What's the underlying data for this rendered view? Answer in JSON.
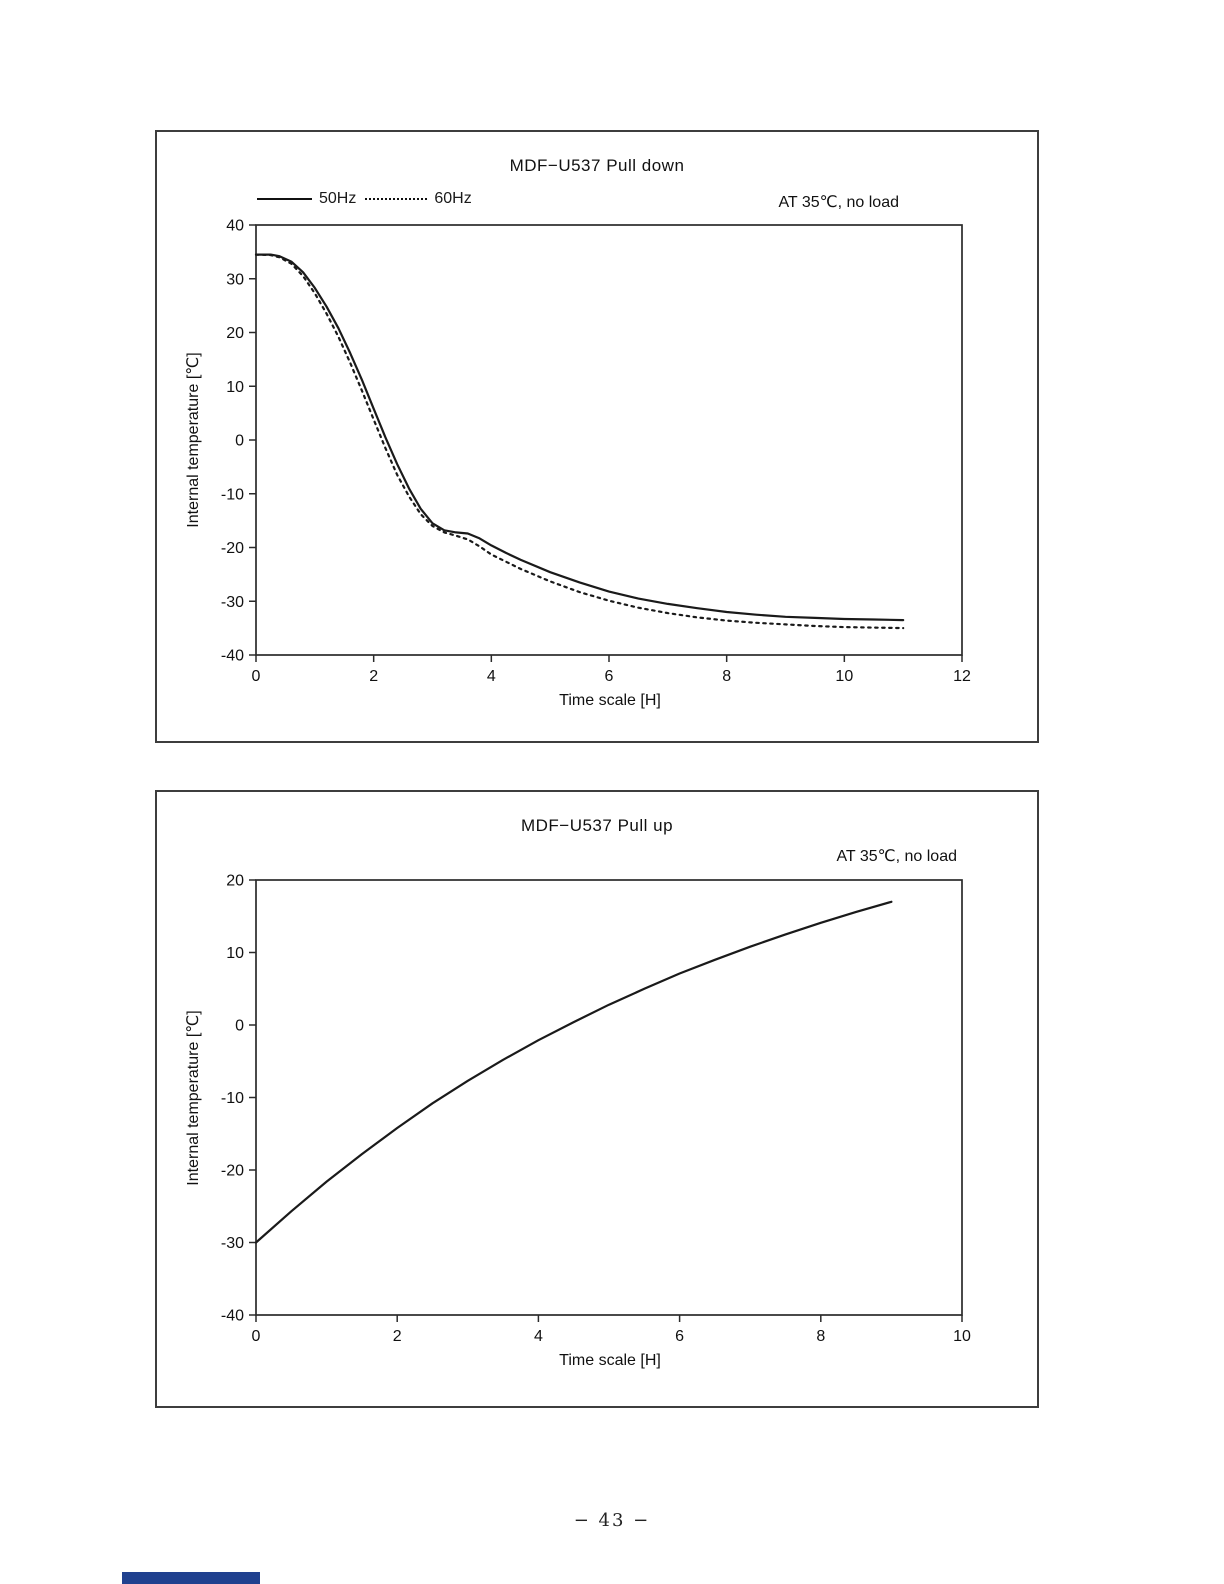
{
  "page": {
    "page_number": "− 43 −"
  },
  "chart_data": [
    {
      "type": "line",
      "title": "MDF−U537  Pull down",
      "annotation": "AT 35℃, no load",
      "xlabel": "Time scale [H]",
      "ylabel": "Internal temperature [℃]",
      "xlim": [
        0,
        12
      ],
      "ylim": [
        -40,
        40
      ],
      "xticks": [
        0,
        2,
        4,
        6,
        8,
        10,
        12
      ],
      "yticks": [
        40,
        30,
        20,
        10,
        0,
        -10,
        -20,
        -30,
        -40
      ],
      "grid": false,
      "legend_position": "top-left",
      "series": [
        {
          "name": "50Hz",
          "line_style": "solid",
          "color": "#1a1a1a",
          "points": [
            [
              0,
              34.5
            ],
            [
              0.25,
              34.5
            ],
            [
              0.4,
              34.2
            ],
            [
              0.6,
              33.2
            ],
            [
              0.8,
              31.2
            ],
            [
              1.0,
              28.3
            ],
            [
              1.2,
              24.8
            ],
            [
              1.4,
              20.8
            ],
            [
              1.6,
              16.2
            ],
            [
              1.8,
              11.2
            ],
            [
              2.0,
              5.8
            ],
            [
              2.2,
              0.5
            ],
            [
              2.4,
              -4.5
            ],
            [
              2.6,
              -9.0
            ],
            [
              2.8,
              -12.8
            ],
            [
              3.0,
              -15.5
            ],
            [
              3.2,
              -16.8
            ],
            [
              3.4,
              -17.2
            ],
            [
              3.6,
              -17.4
            ],
            [
              3.8,
              -18.3
            ],
            [
              4.0,
              -19.6
            ],
            [
              4.25,
              -21.0
            ],
            [
              4.5,
              -22.3
            ],
            [
              5.0,
              -24.6
            ],
            [
              5.5,
              -26.5
            ],
            [
              6.0,
              -28.2
            ],
            [
              6.5,
              -29.5
            ],
            [
              7.0,
              -30.5
            ],
            [
              7.5,
              -31.3
            ],
            [
              8.0,
              -32.0
            ],
            [
              8.5,
              -32.5
            ],
            [
              9.0,
              -32.9
            ],
            [
              9.5,
              -33.1
            ],
            [
              10.0,
              -33.3
            ],
            [
              10.5,
              -33.4
            ],
            [
              11.0,
              -33.5
            ]
          ]
        },
        {
          "name": "60Hz",
          "line_style": "dotted",
          "color": "#1a1a1a",
          "points": [
            [
              0,
              34.5
            ],
            [
              0.25,
              34.4
            ],
            [
              0.4,
              34.0
            ],
            [
              0.6,
              32.8
            ],
            [
              0.8,
              30.5
            ],
            [
              1.0,
              27.3
            ],
            [
              1.2,
              23.5
            ],
            [
              1.4,
              19.2
            ],
            [
              1.6,
              14.4
            ],
            [
              1.8,
              9.2
            ],
            [
              2.0,
              3.8
            ],
            [
              2.2,
              -1.5
            ],
            [
              2.4,
              -6.5
            ],
            [
              2.6,
              -10.5
            ],
            [
              2.8,
              -13.8
            ],
            [
              3.0,
              -16.0
            ],
            [
              3.2,
              -17.2
            ],
            [
              3.4,
              -17.8
            ],
            [
              3.6,
              -18.5
            ],
            [
              3.8,
              -19.8
            ],
            [
              4.0,
              -21.3
            ],
            [
              4.5,
              -24.0
            ],
            [
              5.0,
              -26.3
            ],
            [
              5.5,
              -28.3
            ],
            [
              6.0,
              -29.9
            ],
            [
              6.5,
              -31.2
            ],
            [
              7.0,
              -32.2
            ],
            [
              7.5,
              -33.0
            ],
            [
              8.0,
              -33.6
            ],
            [
              8.5,
              -34.0
            ],
            [
              9.0,
              -34.3
            ],
            [
              9.5,
              -34.6
            ],
            [
              10.0,
              -34.8
            ],
            [
              10.5,
              -34.9
            ],
            [
              11.0,
              -35.0
            ]
          ]
        }
      ]
    },
    {
      "type": "line",
      "title": "MDF−U537 Pull up",
      "annotation": "AT 35℃, no load",
      "xlabel": "Time scale [H]",
      "ylabel": "Internal temperature [℃]",
      "xlim": [
        0,
        10
      ],
      "ylim": [
        -40,
        20
      ],
      "xticks": [
        0,
        2,
        4,
        6,
        8,
        10
      ],
      "yticks": [
        20,
        10,
        0,
        -10,
        -20,
        -30,
        -40
      ],
      "grid": false,
      "legend_position": "none",
      "series": [
        {
          "name": "",
          "line_style": "solid",
          "color": "#1a1a1a",
          "points": [
            [
              0,
              -30.0
            ],
            [
              0.5,
              -25.7
            ],
            [
              1.0,
              -21.6
            ],
            [
              1.5,
              -17.8
            ],
            [
              2.0,
              -14.2
            ],
            [
              2.5,
              -10.8
            ],
            [
              3.0,
              -7.7
            ],
            [
              3.5,
              -4.8
            ],
            [
              4.0,
              -2.1
            ],
            [
              4.5,
              0.4
            ],
            [
              5.0,
              2.8
            ],
            [
              5.5,
              5.0
            ],
            [
              6.0,
              7.1
            ],
            [
              6.5,
              9.0
            ],
            [
              7.0,
              10.8
            ],
            [
              7.5,
              12.5
            ],
            [
              8.0,
              14.1
            ],
            [
              8.5,
              15.6
            ],
            [
              9.0,
              17.0
            ]
          ]
        }
      ]
    }
  ]
}
